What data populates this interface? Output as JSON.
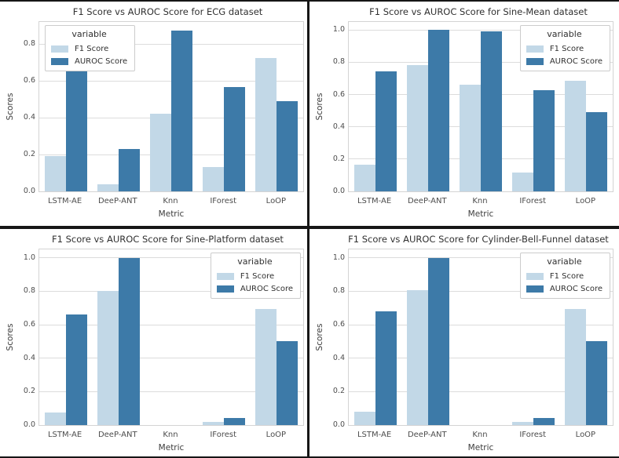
{
  "figure": {
    "background": "#ffffff",
    "divider_color": "#161616",
    "grid_color": "#dcdcdc",
    "spine_color": "#d4d4d4",
    "title_color": "#303030",
    "tick_color": "#4d4d4d",
    "series_palette": {
      "f1": "#c2d8e7",
      "auroc": "#3d7aa8"
    }
  },
  "chart_data": [
    {
      "type": "bar",
      "title": "F1 Score vs AUROC Score for ECG dataset",
      "xlabel": "Metric",
      "ylabel": "Scores",
      "categories": [
        "LSTM-AE",
        "DeeP-ANT",
        "Knn",
        "IForest",
        "LoOP"
      ],
      "series": [
        {
          "name": "F1 Score",
          "color": "#c2d8e7",
          "values": [
            0.19,
            0.04,
            0.42,
            0.13,
            0.725
          ]
        },
        {
          "name": "AUROC Score",
          "color": "#3d7aa8",
          "values": [
            0.66,
            0.23,
            0.875,
            0.565,
            0.49
          ]
        }
      ],
      "legend_title": "variable",
      "legend_position": "top-left",
      "grid": true,
      "yticks": [
        0.0,
        0.2,
        0.4,
        0.6,
        0.8
      ],
      "ylim": [
        0,
        0.92
      ]
    },
    {
      "type": "bar",
      "title": "F1 Score vs AUROC Score for Sine-Mean dataset",
      "xlabel": "Metric",
      "ylabel": "Scores",
      "categories": [
        "LSTM-AE",
        "DeeP-ANT",
        "Knn",
        "IForest",
        "LoOP"
      ],
      "series": [
        {
          "name": "F1 Score",
          "color": "#c2d8e7",
          "values": [
            0.165,
            0.785,
            0.66,
            0.115,
            0.685
          ]
        },
        {
          "name": "AUROC Score",
          "color": "#3d7aa8",
          "values": [
            0.745,
            1.0,
            0.99,
            0.625,
            0.49
          ]
        }
      ],
      "legend_title": "variable",
      "legend_position": "top-right",
      "grid": true,
      "yticks": [
        0.0,
        0.2,
        0.4,
        0.6,
        0.8,
        1.0
      ],
      "ylim": [
        0,
        1.05
      ]
    },
    {
      "type": "bar",
      "title": "F1 Score vs AUROC Score for Sine-Platform dataset",
      "xlabel": "Metric",
      "ylabel": "Scores",
      "categories": [
        "LSTM-AE",
        "DeeP-ANT",
        "Knn",
        "IForest",
        "LoOP"
      ],
      "series": [
        {
          "name": "F1 Score",
          "color": "#c2d8e7",
          "values": [
            0.075,
            0.8,
            0.0,
            0.02,
            0.695
          ]
        },
        {
          "name": "AUROC Score",
          "color": "#3d7aa8",
          "values": [
            0.66,
            1.0,
            0.0,
            0.04,
            0.5
          ]
        }
      ],
      "legend_title": "variable",
      "legend_position": "top-right",
      "grid": true,
      "yticks": [
        0.0,
        0.2,
        0.4,
        0.6,
        0.8,
        1.0
      ],
      "ylim": [
        0,
        1.05
      ]
    },
    {
      "type": "bar",
      "title": "F1 Score vs AUROC Score for Cylinder-Bell-Funnel dataset",
      "xlabel": "Metric",
      "ylabel": "Scores",
      "categories": [
        "LSTM-AE",
        "DeeP-ANT",
        "Knn",
        "IForest",
        "LoOP"
      ],
      "series": [
        {
          "name": "F1 Score",
          "color": "#c2d8e7",
          "values": [
            0.08,
            0.805,
            0.0,
            0.02,
            0.695
          ]
        },
        {
          "name": "AUROC Score",
          "color": "#3d7aa8",
          "values": [
            0.68,
            1.0,
            0.0,
            0.04,
            0.5
          ]
        }
      ],
      "legend_title": "variable",
      "legend_position": "top-right",
      "grid": true,
      "yticks": [
        0.0,
        0.2,
        0.4,
        0.6,
        0.8,
        1.0
      ],
      "ylim": [
        0,
        1.05
      ]
    }
  ]
}
